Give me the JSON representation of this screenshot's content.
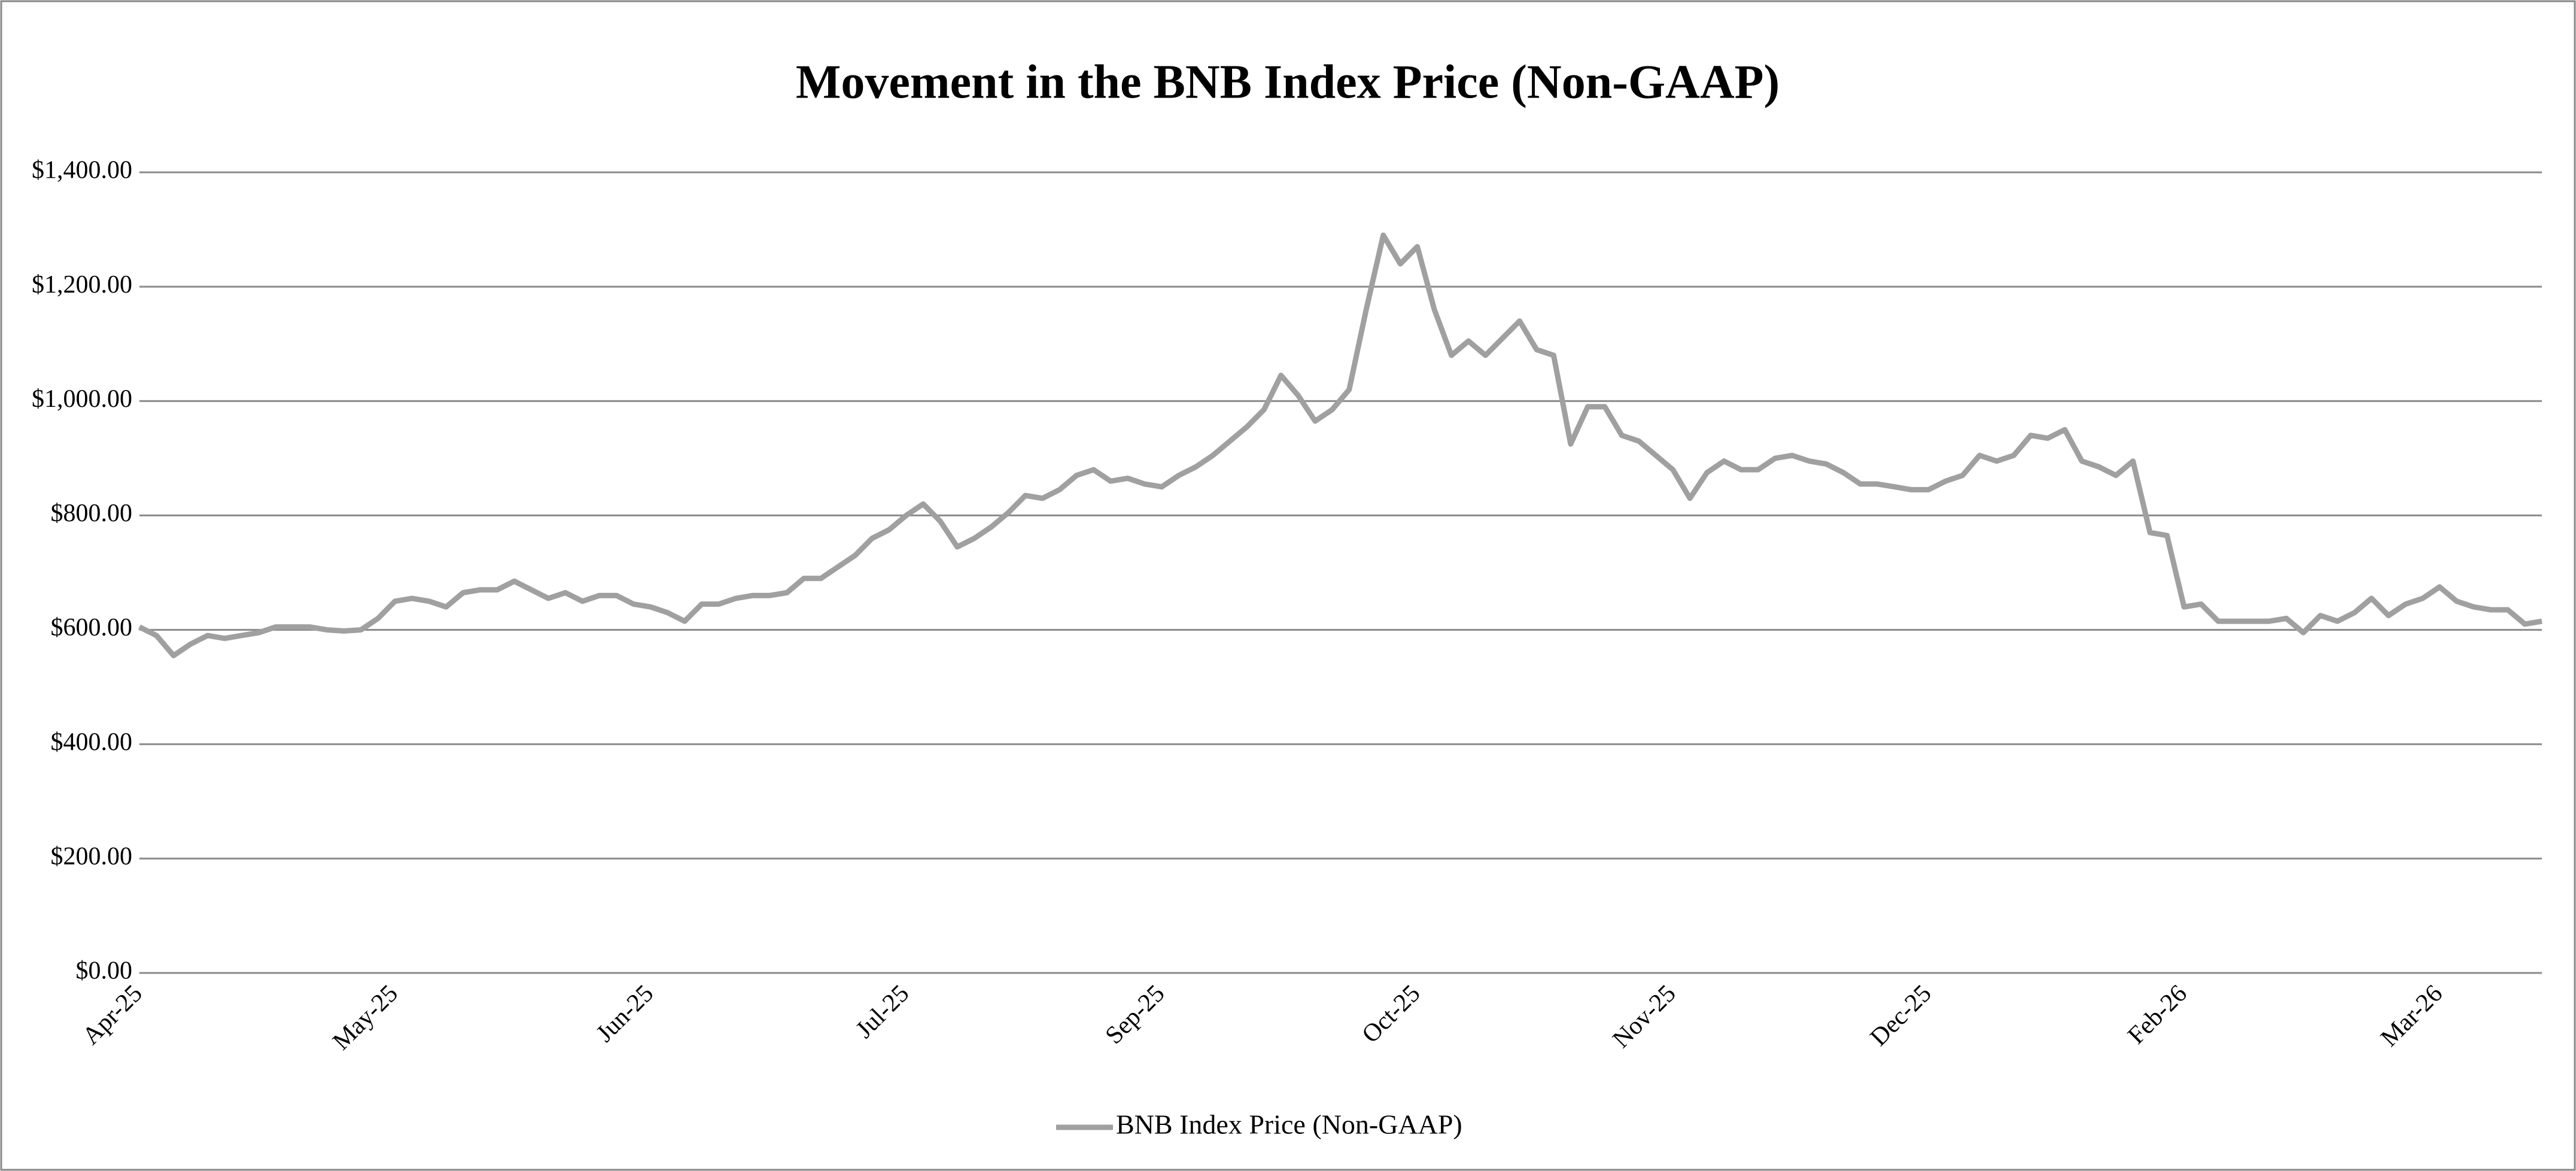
{
  "chart_data": {
    "type": "line",
    "title": "Movement in the BNB Index Price (Non-GAAP)",
    "categories": [
      "Apr-25",
      null,
      null,
      null,
      null,
      null,
      null,
      null,
      null,
      null,
      null,
      null,
      null,
      null,
      null,
      "May-25",
      null,
      null,
      null,
      null,
      null,
      null,
      null,
      null,
      null,
      null,
      null,
      null,
      null,
      null,
      "Jun-25",
      null,
      null,
      null,
      null,
      null,
      null,
      null,
      null,
      null,
      null,
      null,
      null,
      null,
      null,
      "Jul-25",
      null,
      null,
      null,
      null,
      null,
      null,
      null,
      null,
      null,
      null,
      null,
      null,
      null,
      null,
      "Sep-25",
      null,
      null,
      null,
      null,
      null,
      null,
      null,
      null,
      null,
      null,
      null,
      null,
      null,
      null,
      "Oct-25",
      null,
      null,
      null,
      null,
      null,
      null,
      null,
      null,
      null,
      null,
      null,
      null,
      null,
      null,
      "Nov-25",
      null,
      null,
      null,
      null,
      null,
      null,
      null,
      null,
      null,
      null,
      null,
      null,
      null,
      null,
      "Dec-25",
      null,
      null,
      null,
      null,
      null,
      null,
      null,
      null,
      null,
      null,
      null,
      null,
      null,
      null,
      "Feb-26",
      null,
      null,
      null,
      null,
      null,
      null,
      null,
      null,
      null,
      null,
      null,
      null,
      null,
      null,
      "Mar-26",
      null,
      null,
      null,
      null,
      null,
      null
    ],
    "series": [
      {
        "name": "BNB Index Price (Non-GAAP)",
        "color": "#a0a0a0",
        "values": [
          605,
          590,
          555,
          575,
          590,
          585,
          590,
          595,
          605,
          605,
          605,
          600,
          598,
          600,
          620,
          650,
          655,
          650,
          640,
          665,
          670,
          670,
          685,
          670,
          655,
          665,
          650,
          660,
          660,
          645,
          640,
          630,
          615,
          645,
          645,
          655,
          660,
          660,
          665,
          690,
          690,
          710,
          730,
          760,
          775,
          800,
          820,
          790,
          745,
          760,
          780,
          805,
          835,
          830,
          845,
          870,
          880,
          860,
          865,
          855,
          850,
          870,
          885,
          905,
          930,
          955,
          985,
          1045,
          1010,
          965,
          985,
          1020,
          1160,
          1290,
          1240,
          1270,
          1160,
          1080,
          1105,
          1080,
          1110,
          1140,
          1090,
          1080,
          925,
          990,
          990,
          940,
          930,
          905,
          880,
          830,
          875,
          895,
          880,
          880,
          900,
          905,
          895,
          890,
          875,
          855,
          855,
          850,
          845,
          845,
          860,
          870,
          905,
          895,
          905,
          940,
          935,
          950,
          895,
          885,
          870,
          895,
          770,
          765,
          640,
          645,
          615,
          615,
          615,
          615,
          620,
          595,
          625,
          615,
          630,
          655,
          625,
          645,
          655,
          675,
          650,
          640,
          635,
          635,
          610,
          615
        ]
      }
    ],
    "ylim": [
      0,
      1400
    ],
    "yticks": [
      {
        "value": 0,
        "label": "$0.00"
      },
      {
        "value": 200,
        "label": "$200.00"
      },
      {
        "value": 400,
        "label": "$400.00"
      },
      {
        "value": 600,
        "label": "$600.00"
      },
      {
        "value": 800,
        "label": "$800.00"
      },
      {
        "value": 1000,
        "label": "$1,000.00"
      },
      {
        "value": 1200,
        "label": "$1,200.00"
      },
      {
        "value": 1400,
        "label": "$1,400.00"
      }
    ],
    "grid": true,
    "legend": "bottom"
  }
}
